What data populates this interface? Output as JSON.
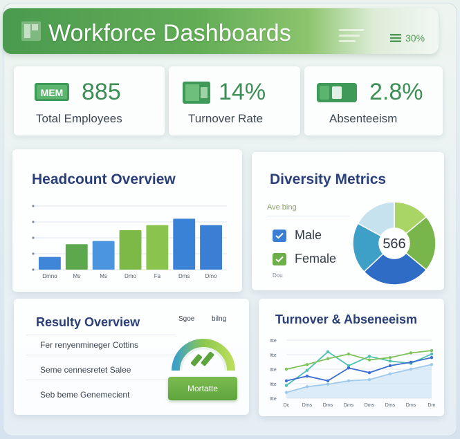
{
  "app": {
    "title": "Workforce Dashboards",
    "header_badge": "30%"
  },
  "kpis": [
    {
      "value": "885",
      "label": "Total Employees",
      "icon": "mem-card-icon"
    },
    {
      "value": "14%",
      "label": "Turnover Rate",
      "icon": "document-icon"
    },
    {
      "value": "2.8%",
      "label": "Absenteeism",
      "icon": "wallet-icon"
    }
  ],
  "headcount": {
    "title": "Headcount Overview"
  },
  "diversity": {
    "title": "Diversity Metrics",
    "subtitle": "Ave bing",
    "center_value": "566",
    "footer": "Dou",
    "legend": [
      {
        "label": "Male",
        "color": "#3b7fd4"
      },
      {
        "label": "Female",
        "color": "#6cae48"
      }
    ]
  },
  "results": {
    "title": "Resulty Overview",
    "col1": "Sgoe",
    "col2": "bilng",
    "rows": [
      "Fer renyenmineger Cottins",
      "Seme cennesretet Salee",
      "Seb beme Genemecient"
    ],
    "button": "Mortatte"
  },
  "turnover": {
    "title": "Turnover & Abseneeism"
  },
  "colors": {
    "green": "#5ea43d",
    "blue": "#3b7fd4",
    "navy": "#2a3f78"
  },
  "chart_data": [
    {
      "type": "bar",
      "title": "Headcount Overview",
      "categories": [
        "Dmno",
        "Ms",
        "Ms",
        "Dmo",
        "Fa",
        "Dms",
        "Dmo"
      ],
      "values": [
        20,
        40,
        45,
        62,
        70,
        80,
        70
      ],
      "ylim": [
        0,
        100
      ],
      "grid": true
    },
    {
      "type": "pie",
      "title": "Diversity Metrics",
      "slices": [
        {
          "label": "",
          "value": 14,
          "color": "#a9d566"
        },
        {
          "label": "",
          "value": 22,
          "color": "#78b64c"
        },
        {
          "label": "",
          "value": 27,
          "color": "#2f6cc6"
        },
        {
          "label": "",
          "value": 20,
          "color": "#3ea0c6"
        },
        {
          "label": "",
          "value": 17,
          "color": "#c6e2ee"
        }
      ],
      "center_label": "566"
    },
    {
      "type": "line",
      "title": "Turnover & Abseneeism",
      "x": [
        "Dc",
        "Dms",
        "Dms",
        "Dms",
        "Dms",
        "Dms",
        "Dms",
        "Dm"
      ],
      "y_ticks": [
        "Itte",
        "Itte",
        "Itte",
        "Itte",
        "Itte"
      ],
      "ylim": [
        0,
        100
      ],
      "series": [
        {
          "values": [
            22,
            48,
            80,
            56,
            72,
            64,
            60,
            76
          ],
          "color": "#4ebfb0"
        },
        {
          "values": [
            50,
            58,
            68,
            76,
            66,
            70,
            78,
            82
          ],
          "color": "#7ec35a"
        },
        {
          "values": [
            30,
            38,
            30,
            52,
            44,
            56,
            62,
            70
          ],
          "color": "#3c6fd0"
        },
        {
          "values": [
            10,
            20,
            24,
            30,
            32,
            42,
            50,
            58
          ],
          "color": "#9fc9ea"
        }
      ],
      "grid": true
    }
  ]
}
